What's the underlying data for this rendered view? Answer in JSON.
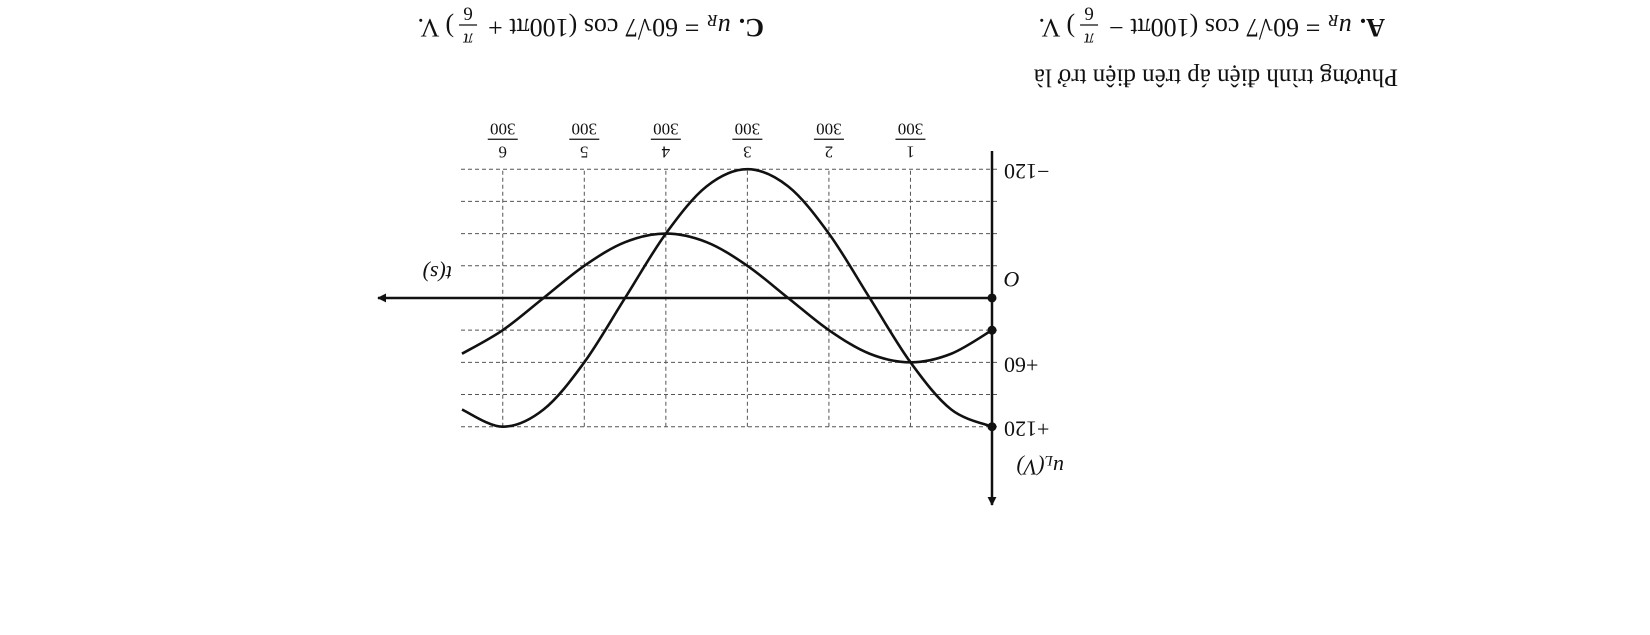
{
  "question": {
    "prompt": "Phương trình điện áp trên điện trở là",
    "options": [
      {
        "label": "A.",
        "variable": "u",
        "subscript": "R",
        "expression": "= 60√7 cos (100πt −",
        "fraction": {
          "numerator": "π",
          "denominator": "6"
        },
        "tail": ") V."
      },
      {
        "label": "C.",
        "variable": "u",
        "subscript": "R",
        "expression": "= 60√7 cos (100πt +",
        "fraction": {
          "numerator": "π",
          "denominator": "6"
        },
        "tail": ") V."
      }
    ]
  },
  "graph": {
    "type": "line",
    "ylabel": {
      "symbol": "u",
      "subscript": "L",
      "unit": "(V)"
    },
    "xlabel": "t(s)",
    "x": [
      0,
      0.001667,
      0.003333,
      0.005,
      0.006667,
      0.008333,
      0.01,
      0.011667,
      0.013333,
      0.015,
      0.016667,
      0.018333,
      0.02,
      0.021667
    ],
    "series": [
      {
        "color": "#111111",
        "values": [
          120,
          104,
          60,
          0,
          -60,
          -104,
          -120,
          -104,
          -60,
          0,
          60,
          104,
          120,
          104
        ]
      },
      {
        "color": "#111111",
        "values": [
          30,
          52,
          60,
          52,
          30,
          0,
          -30,
          -52,
          -60,
          -52,
          -30,
          0,
          30,
          52
        ]
      }
    ],
    "xlim": [
      0,
      0.0251
    ],
    "ylim": [
      -137,
      193
    ],
    "yticks": [
      {
        "value": 120,
        "label": "+120"
      },
      {
        "value": 60,
        "label": "+60"
      },
      {
        "value": 0,
        "label": "O"
      },
      {
        "value": -120,
        "label": "−120"
      }
    ],
    "ygrid": [
      -120,
      -90,
      -60,
      -30,
      30,
      60,
      90,
      120
    ],
    "xticks": [
      {
        "value": 0.003333,
        "numerator": "1",
        "denominator": "300"
      },
      {
        "value": 0.006667,
        "numerator": "2",
        "denominator": "300"
      },
      {
        "value": 0.01,
        "numerator": "3",
        "denominator": "300"
      },
      {
        "value": 0.013333,
        "numerator": "4",
        "denominator": "300"
      },
      {
        "value": 0.016667,
        "numerator": "5",
        "denominator": "300"
      },
      {
        "value": 0.02,
        "numerator": "6",
        "denominator": "300"
      }
    ],
    "grid": true
  }
}
